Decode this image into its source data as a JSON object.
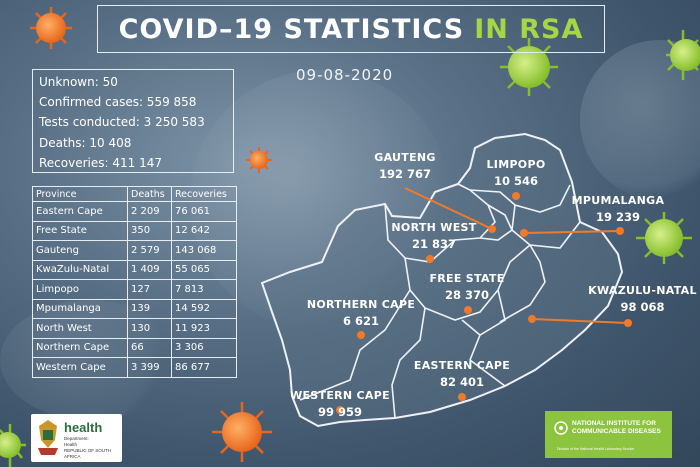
{
  "title": {
    "part1": "COVID–19 STATISTICS",
    "part2": "IN RSA"
  },
  "date": "09-08-2020",
  "summary": {
    "unknown": "Unknown: 50",
    "confirmed": "Confirmed cases: 559 858",
    "tests": "Tests conducted: 3 250 583",
    "deaths": "Deaths: 10 408",
    "recoveries": "Recoveries: 411 147"
  },
  "table": {
    "headers": [
      "Province",
      "Deaths",
      "Recoveries"
    ],
    "rows": [
      [
        "Eastern Cape",
        "2 209",
        "76 061"
      ],
      [
        "Free State",
        "350",
        "12 642"
      ],
      [
        "Gauteng",
        "2 579",
        "143 068"
      ],
      [
        "KwaZulu-Natal",
        "1 409",
        "55 065"
      ],
      [
        "Limpopo",
        "127",
        "7 813"
      ],
      [
        "Mpumalanga",
        "139",
        "14 592"
      ],
      [
        "North West",
        "130",
        "11 923"
      ],
      [
        "Northern Cape",
        "66",
        "3 306"
      ],
      [
        "Western Cape",
        "3 399",
        "86 677"
      ]
    ]
  },
  "provinces": {
    "gauteng": {
      "name": "GAUTENG",
      "value": "192 767"
    },
    "limpopo": {
      "name": "LIMPOPO",
      "value": "10 546"
    },
    "mpumalanga": {
      "name": "MPUMALANGA",
      "value": "19 239"
    },
    "north_west": {
      "name": "NORTH WEST",
      "value": "21 837"
    },
    "free_state": {
      "name": "FREE STATE",
      "value": "28 370"
    },
    "kwazulu_natal": {
      "name": "KWAZULU-NATAL",
      "value": "98 068"
    },
    "northern_cape": {
      "name": "NORTHERN CAPE",
      "value": "6 621"
    },
    "eastern_cape": {
      "name": "EASTERN CAPE",
      "value": "82 401"
    },
    "western_cape": {
      "name": "WESTERN CAPE",
      "value": "99 959"
    }
  },
  "logos": {
    "health_word": "health",
    "health_sub1": "Department:",
    "health_sub2": "Health",
    "health_sub3": "REPUBLIC OF SOUTH AFRICA",
    "nicd_line1": "NATIONAL INSTITUTE FOR",
    "nicd_line2": "COMMUNICABLE DISEASES",
    "nicd_sub": "Division of the National Health Laboratory Service"
  },
  "colors": {
    "accent_green": "#a6d645",
    "marker_orange": "#f07a2a",
    "virus_orange": "#f28a30",
    "virus_green": "#9ccf3c"
  }
}
